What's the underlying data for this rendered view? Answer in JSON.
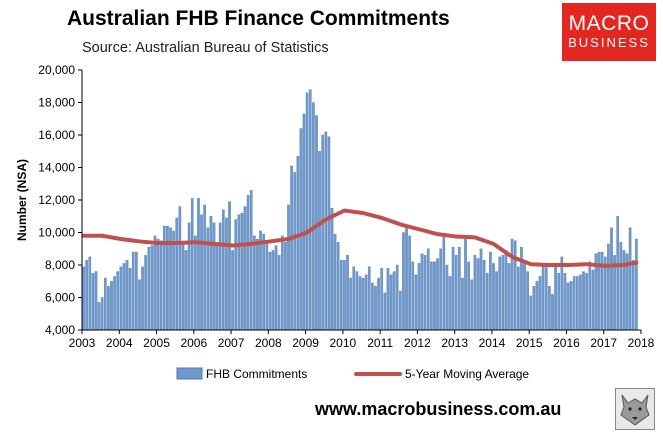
{
  "header": {
    "title": "Australian FHB Finance Commitments",
    "subtitle": "Source: Australian Bureau of Statistics"
  },
  "logo": {
    "line1": "MACRO",
    "line2": "BUSINESS",
    "bg_color": "#e3261f"
  },
  "footer": {
    "url": "www.macrobusiness.com.au",
    "badge_icon": "wolf-icon"
  },
  "colors": {
    "bar": "#6f99cc",
    "bar_edge": "#5379aa",
    "ma_line": "#c0504d"
  },
  "chart_data": {
    "type": "bar",
    "ylabel": "Number (NSA)",
    "xlabel": "",
    "ylim": [
      4000,
      20000
    ],
    "yticks": [
      4000,
      6000,
      8000,
      10000,
      12000,
      14000,
      16000,
      18000,
      20000
    ],
    "ytick_labels": [
      "4,000",
      "6,000",
      "8,000",
      "10,000",
      "12,000",
      "14,000",
      "16,000",
      "18,000",
      "20,000"
    ],
    "x_start": "2003-01",
    "x_end": "2018-01",
    "xtick_labels": [
      "2003",
      "2004",
      "2005",
      "2006",
      "2007",
      "2008",
      "2009",
      "2010",
      "2011",
      "2012",
      "2013",
      "2014",
      "2015",
      "2016",
      "2017",
      "2018"
    ],
    "legend_position": "bottom",
    "grid": false,
    "series": [
      {
        "name": "FHB Commitments",
        "type": "bar",
        "x": [
          "2003-01",
          "2003-02",
          "2003-03",
          "2003-04",
          "2003-05",
          "2003-06",
          "2003-07",
          "2003-08",
          "2003-09",
          "2003-10",
          "2003-11",
          "2003-12",
          "2004-01",
          "2004-02",
          "2004-03",
          "2004-04",
          "2004-05",
          "2004-06",
          "2004-07",
          "2004-08",
          "2004-09",
          "2004-10",
          "2004-11",
          "2004-12",
          "2005-01",
          "2005-02",
          "2005-03",
          "2005-04",
          "2005-05",
          "2005-06",
          "2005-07",
          "2005-08",
          "2005-09",
          "2005-10",
          "2005-11",
          "2005-12",
          "2006-01",
          "2006-02",
          "2006-03",
          "2006-04",
          "2006-05",
          "2006-06",
          "2006-07",
          "2006-08",
          "2006-09",
          "2006-10",
          "2006-11",
          "2006-12",
          "2007-01",
          "2007-02",
          "2007-03",
          "2007-04",
          "2007-05",
          "2007-06",
          "2007-07",
          "2007-08",
          "2007-09",
          "2007-10",
          "2007-11",
          "2007-12",
          "2008-01",
          "2008-02",
          "2008-03",
          "2008-04",
          "2008-05",
          "2008-06",
          "2008-07",
          "2008-08",
          "2008-09",
          "2008-10",
          "2008-11",
          "2008-12",
          "2009-01",
          "2009-02",
          "2009-03",
          "2009-04",
          "2009-05",
          "2009-06",
          "2009-07",
          "2009-08",
          "2009-09",
          "2009-10",
          "2009-11",
          "2009-12",
          "2010-01",
          "2010-02",
          "2010-03",
          "2010-04",
          "2010-05",
          "2010-06",
          "2010-07",
          "2010-08",
          "2010-09",
          "2010-10",
          "2010-11",
          "2010-12",
          "2011-01",
          "2011-02",
          "2011-03",
          "2011-04",
          "2011-05",
          "2011-06",
          "2011-07",
          "2011-08",
          "2011-09",
          "2011-10",
          "2011-11",
          "2011-12",
          "2012-01",
          "2012-02",
          "2012-03",
          "2012-04",
          "2012-05",
          "2012-06",
          "2012-07",
          "2012-08",
          "2012-09",
          "2012-10",
          "2012-11",
          "2012-12",
          "2013-01",
          "2013-02",
          "2013-03",
          "2013-04",
          "2013-05",
          "2013-06",
          "2013-07",
          "2013-08",
          "2013-09",
          "2013-10",
          "2013-11",
          "2013-12",
          "2014-01",
          "2014-02",
          "2014-03",
          "2014-04",
          "2014-05",
          "2014-06",
          "2014-07",
          "2014-08",
          "2014-09",
          "2014-10",
          "2014-11",
          "2014-12",
          "2015-01",
          "2015-02",
          "2015-03",
          "2015-04",
          "2015-05",
          "2015-06",
          "2015-07",
          "2015-08",
          "2015-09",
          "2015-10",
          "2015-11",
          "2015-12",
          "2016-01",
          "2016-02",
          "2016-03",
          "2016-04",
          "2016-05",
          "2016-06",
          "2016-07",
          "2016-08",
          "2016-09",
          "2016-10",
          "2016-11",
          "2016-12",
          "2017-01",
          "2017-02",
          "2017-03",
          "2017-04",
          "2017-05",
          "2017-06",
          "2017-07",
          "2017-08",
          "2017-09",
          "2017-10",
          "2017-11"
        ],
        "values": [
          7900,
          8300,
          8500,
          7500,
          7600,
          5700,
          6000,
          7200,
          6700,
          7000,
          7300,
          7600,
          7900,
          8100,
          8300,
          7800,
          8800,
          8800,
          7100,
          7900,
          8600,
          9100,
          9200,
          9800,
          9600,
          9500,
          10400,
          10400,
          10300,
          10100,
          10900,
          11600,
          9300,
          8900,
          10600,
          12100,
          9800,
          12100,
          11100,
          11700,
          10300,
          11000,
          10600,
          9400,
          10600,
          11400,
          10900,
          11900,
          8900,
          10800,
          11100,
          11200,
          11600,
          12300,
          12600,
          9800,
          9600,
          10100,
          9900,
          9400,
          8800,
          8900,
          9200,
          8600,
          9800,
          9400,
          11700,
          14100,
          13700,
          14700,
          16400,
          17300,
          18600,
          18800,
          18000,
          17200,
          15000,
          16000,
          16200,
          15900,
          11500,
          9900,
          9400,
          8300,
          8300,
          8600,
          7200,
          7900,
          7600,
          7300,
          7200,
          7400,
          7900,
          6900,
          6700,
          7200,
          7800,
          6300,
          7800,
          7400,
          7600,
          8000,
          6400,
          10000,
          10300,
          9800,
          8200,
          7400,
          8100,
          8700,
          8600,
          9000,
          8200,
          8200,
          8400,
          9000,
          9700,
          8000,
          7300,
          9100,
          8600,
          9100,
          7200,
          9800,
          8200,
          7100,
          8600,
          8400,
          9000,
          8300,
          7500,
          8800,
          8100,
          7600,
          8500,
          8600,
          8900,
          8100,
          9600,
          9500,
          7900,
          9100,
          8200,
          7600,
          6100,
          6700,
          7000,
          7300,
          7900,
          8100,
          6700,
          6200,
          8100,
          7500,
          8500,
          7500,
          6900,
          7000,
          7300,
          7300,
          7400,
          7600,
          7500,
          8200,
          7700,
          8700,
          8800,
          8800,
          8500,
          9300,
          10300,
          8600,
          11000,
          9400,
          8900,
          8700,
          10300,
          8300,
          9600
        ]
      },
      {
        "name": "5-Year Moving Average",
        "type": "line",
        "x": [
          "2003-01",
          "2003-07",
          "2004-01",
          "2004-07",
          "2005-01",
          "2005-07",
          "2006-01",
          "2006-07",
          "2007-01",
          "2007-07",
          "2008-01",
          "2008-07",
          "2009-01",
          "2009-07",
          "2010-01",
          "2010-07",
          "2011-01",
          "2011-07",
          "2012-01",
          "2012-07",
          "2013-01",
          "2013-07",
          "2014-01",
          "2014-07",
          "2015-01",
          "2015-07",
          "2016-01",
          "2016-07",
          "2017-01",
          "2017-07",
          "2017-11"
        ],
        "values": [
          9800,
          9800,
          9600,
          9450,
          9350,
          9350,
          9400,
          9300,
          9200,
          9300,
          9450,
          9600,
          10000,
          10800,
          11350,
          11200,
          10900,
          10500,
          10200,
          9900,
          9750,
          9700,
          9300,
          8500,
          8050,
          8000,
          8000,
          8050,
          7950,
          8000,
          8150
        ]
      }
    ]
  }
}
